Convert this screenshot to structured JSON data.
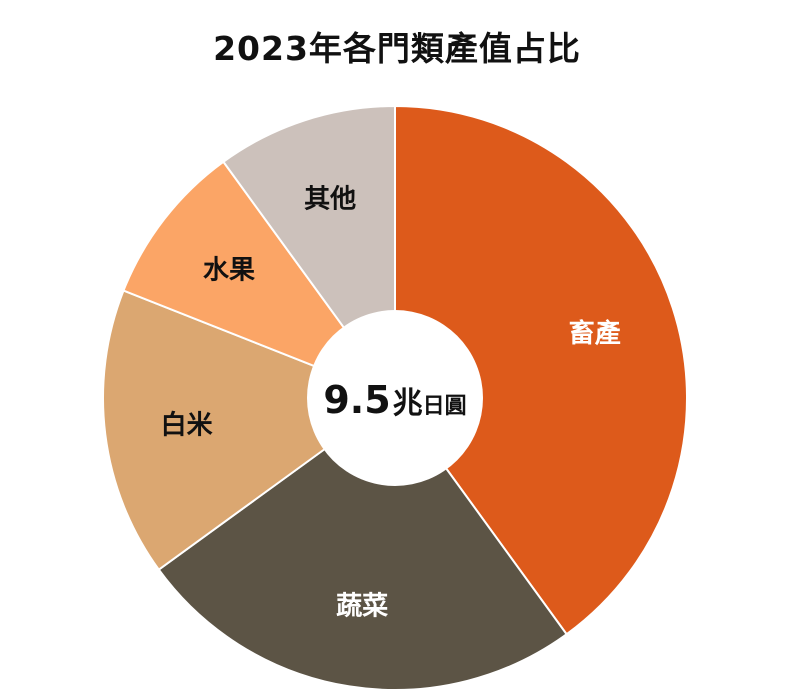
{
  "chart_data": {
    "type": "pie",
    "title": "2023年各門類產值占比",
    "center_label": {
      "value": "9.5",
      "unit_prefix": "兆",
      "unit_suffix": "日圓"
    },
    "slices": [
      {
        "label": "畜產",
        "value": 40,
        "color": "#dd5a1b",
        "label_color": "#ffffff"
      },
      {
        "label": "蔬菜",
        "value": 25,
        "color": "#5c5445",
        "label_color": "#ffffff"
      },
      {
        "label": "白米",
        "value": 16,
        "color": "#dba771",
        "label_color": "#111111"
      },
      {
        "label": "水果",
        "value": 9,
        "color": "#fba566",
        "label_color": "#111111"
      },
      {
        "label": "其他",
        "value": 10,
        "color": "#ccc1bb",
        "label_color": "#111111"
      }
    ]
  }
}
